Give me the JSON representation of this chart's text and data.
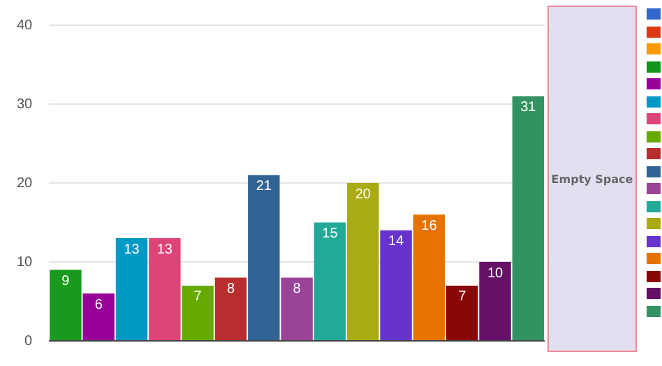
{
  "chart_data": {
    "type": "bar",
    "categories": [
      null,
      null,
      null,
      null,
      null,
      null,
      null,
      null,
      null,
      null,
      null,
      null,
      null,
      null,
      null
    ],
    "values": [
      9,
      6,
      13,
      13,
      7,
      8,
      21,
      8,
      15,
      20,
      14,
      16,
      7,
      10,
      31
    ],
    "colors": [
      "#189a1e",
      "#990099",
      "#0099c6",
      "#dd4477",
      "#66aa00",
      "#b82e2e",
      "#316395",
      "#994499",
      "#22aa99",
      "#aaaa11",
      "#6633cc",
      "#e67300",
      "#8b0707",
      "#651067",
      "#329262"
    ],
    "ylim": [
      0,
      40
    ],
    "yticks": [
      0,
      10,
      20,
      30,
      40
    ],
    "annotations": [
      "Empty Space"
    ],
    "data_labels": true,
    "grid": "y",
    "tick_labels": "y",
    "legend": false
  }
}
